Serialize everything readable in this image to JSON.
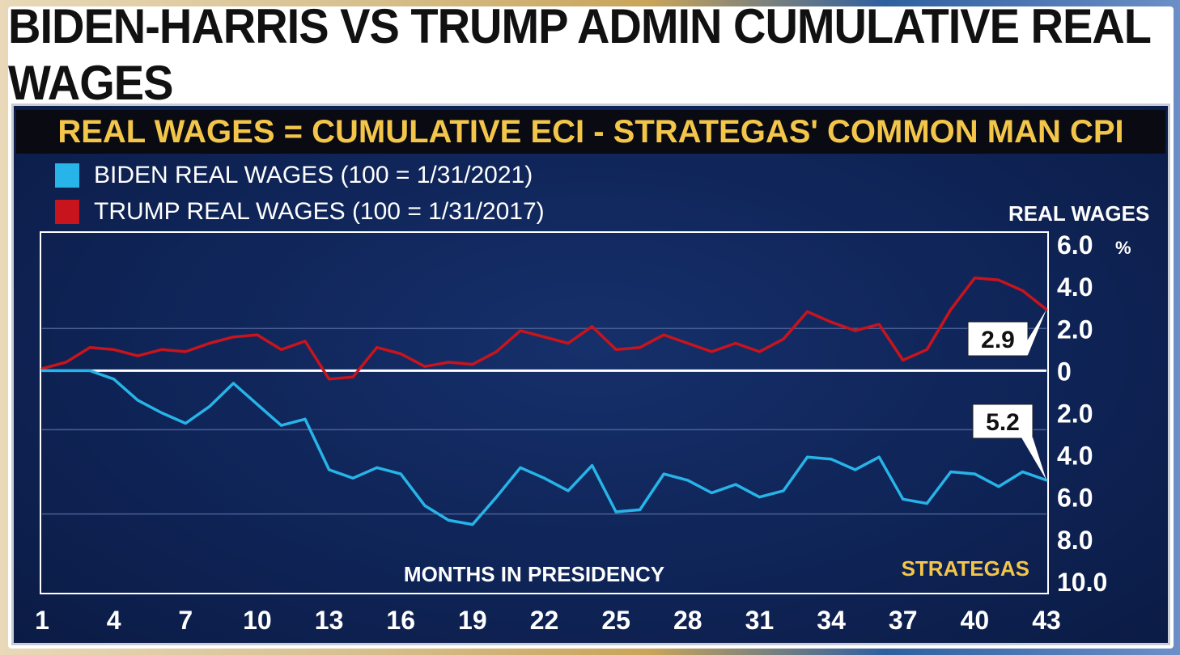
{
  "headline": "BIDEN-HARRIS VS TRUMP ADMIN CUMULATIVE REAL WAGES",
  "subtitle": "REAL WAGES = CUMULATIVE ECI - STRATEGAS' COMMON MAN CPI",
  "legend": {
    "biden": "BIDEN REAL WAGES (100 = 1/31/2021)",
    "trump": "TRUMP REAL WAGES (100 = 1/31/2017)"
  },
  "colors": {
    "biden": "#27b4e8",
    "trump": "#c8141c",
    "accent": "#f3c64a"
  },
  "chart_data": {
    "type": "line",
    "title": "BIDEN-HARRIS VS TRUMP ADMIN CUMULATIVE REAL WAGES",
    "subtitle": "REAL WAGES = CUMULATIVE ECI - STRATEGAS' COMMON MAN CPI",
    "xlabel": "MONTHS IN PRESIDENCY",
    "ylabel": "REAL WAGES",
    "y_unit": "%",
    "source": "STRATEGAS",
    "x_ticks": [
      1,
      4,
      7,
      10,
      13,
      16,
      19,
      22,
      25,
      28,
      31,
      34,
      37,
      40,
      43
    ],
    "y_ticks": [
      {
        "value": 6,
        "label": "6.0"
      },
      {
        "value": 4,
        "label": "4.0"
      },
      {
        "value": 2,
        "label": "2.0"
      },
      {
        "value": 0,
        "label": "0"
      },
      {
        "value": -2,
        "label": "2.0"
      },
      {
        "value": -4,
        "label": "4.0"
      },
      {
        "value": -6,
        "label": "6.0"
      },
      {
        "value": -8,
        "label": "8.0"
      },
      {
        "value": -10,
        "label": "10.0"
      }
    ],
    "xlim": [
      1,
      43
    ],
    "ylim": [
      -10.5,
      6.5
    ],
    "gridlines": [
      2,
      -2.8,
      -6.8
    ],
    "series": [
      {
        "name": "TRUMP REAL WAGES (100 = 1/31/2017)",
        "x": [
          1,
          2,
          3,
          4,
          5,
          6,
          7,
          8,
          9,
          10,
          11,
          12,
          13,
          14,
          15,
          16,
          17,
          18,
          19,
          20,
          21,
          22,
          23,
          24,
          25,
          26,
          27,
          28,
          29,
          30,
          31,
          32,
          33,
          34,
          35,
          36,
          37,
          38,
          39,
          40,
          41,
          42,
          43
        ],
        "values": [
          0.1,
          0.4,
          1.1,
          1.0,
          0.7,
          1.0,
          0.9,
          1.3,
          1.6,
          1.7,
          1.0,
          1.4,
          -0.4,
          -0.3,
          1.1,
          0.8,
          0.2,
          0.4,
          0.3,
          0.9,
          1.9,
          1.6,
          1.3,
          2.1,
          1.0,
          1.1,
          1.7,
          1.3,
          0.9,
          1.3,
          0.9,
          1.5,
          2.8,
          2.3,
          1.9,
          2.2,
          0.5,
          1.0,
          2.9,
          4.4,
          4.3,
          3.8,
          2.9
        ],
        "end_label": "2.9"
      },
      {
        "name": "BIDEN REAL WAGES (100 = 1/31/2021)",
        "x": [
          1,
          2,
          3,
          4,
          5,
          6,
          7,
          8,
          9,
          10,
          11,
          12,
          13,
          14,
          15,
          16,
          17,
          18,
          19,
          20,
          21,
          22,
          23,
          24,
          25,
          26,
          27,
          28,
          29,
          30,
          31,
          32,
          33,
          34,
          35,
          36,
          37,
          38,
          39,
          40,
          41,
          42,
          43
        ],
        "values": [
          0.0,
          0.0,
          0.0,
          -0.4,
          -1.4,
          -2.0,
          -2.5,
          -1.7,
          -0.6,
          -1.6,
          -2.6,
          -2.3,
          -4.7,
          -5.1,
          -4.6,
          -4.9,
          -6.4,
          -7.1,
          -7.3,
          -6.0,
          -4.6,
          -5.1,
          -5.7,
          -4.5,
          -6.7,
          -6.6,
          -4.9,
          -5.2,
          -5.8,
          -5.4,
          -6.0,
          -5.7,
          -4.1,
          -4.2,
          -4.7,
          -4.1,
          -6.1,
          -6.3,
          -4.8,
          -4.9,
          -5.5,
          -4.8,
          -5.2
        ],
        "end_label": "5.2"
      }
    ]
  }
}
